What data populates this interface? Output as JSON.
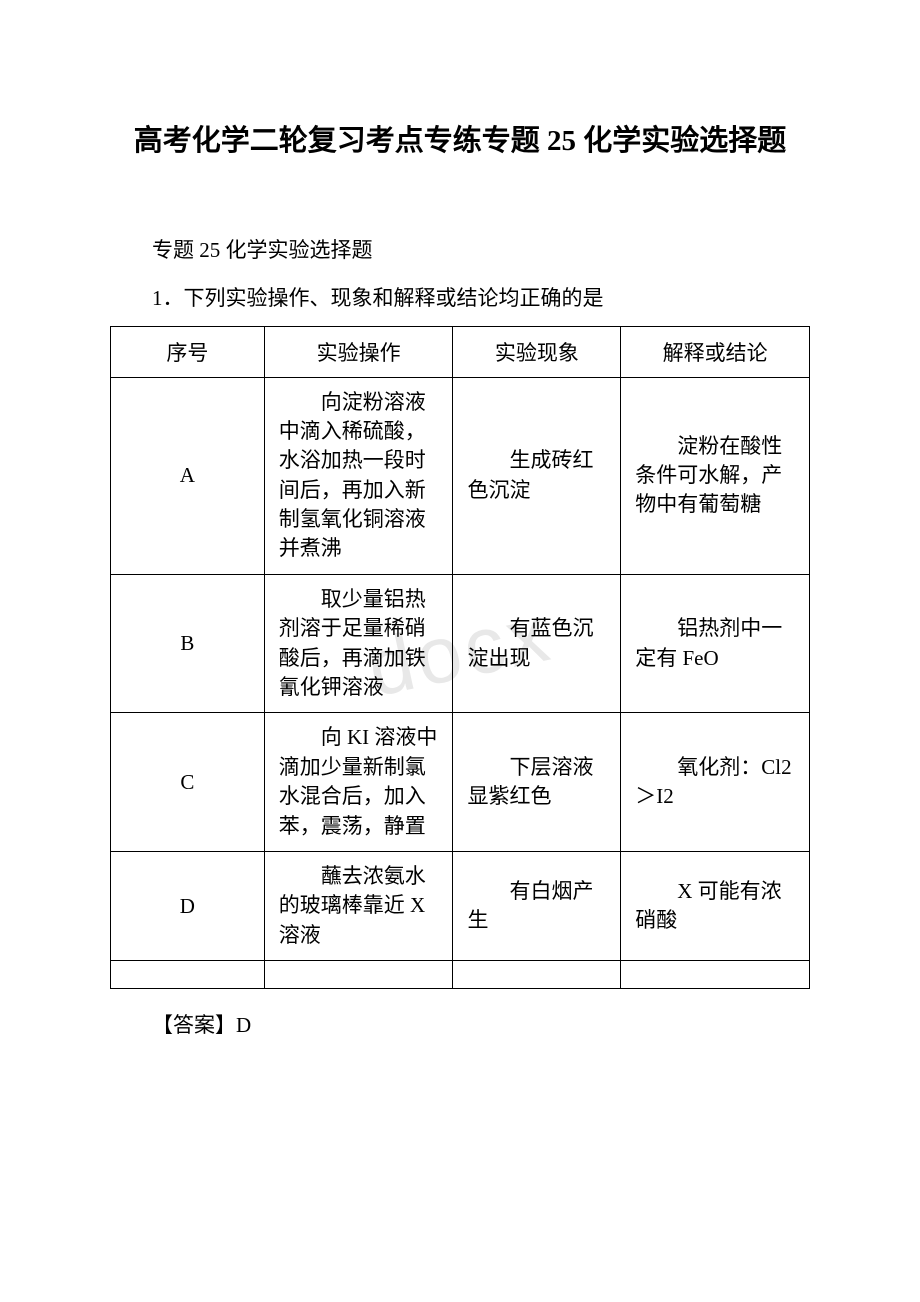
{
  "watermark": "docx",
  "title": "高考化学二轮复习考点专练专题 25 化学实验选择题",
  "subtitle": "专题 25 化学实验选择题",
  "question": "1．下列实验操作、现象和解释或结论均正确的是",
  "table": {
    "headers": {
      "seq": "序号",
      "operation": "实验操作",
      "phenomenon": "实验现象",
      "conclusion": "解释或结论"
    },
    "rows": [
      {
        "seq": "A",
        "operation": "向淀粉溶液中滴入稀硫酸，水浴加热一段时间后，再加入新制氢氧化铜溶液并煮沸",
        "phenomenon": "生成砖红色沉淀",
        "conclusion": "淀粉在酸性条件可水解，产物中有葡萄糖"
      },
      {
        "seq": "B",
        "operation": "取少量铝热剂溶于足量稀硝酸后，再滴加铁氰化钾溶液",
        "phenomenon": "有蓝色沉淀出现",
        "conclusion": "铝热剂中一定有 FeO"
      },
      {
        "seq": "C",
        "operation": "向 KI 溶液中滴加少量新制氯水混合后，加入苯，震荡，静置",
        "phenomenon": "下层溶液显紫红色",
        "conclusion": "氧化剂：Cl2＞I2"
      },
      {
        "seq": "D",
        "operation": "蘸去浓氨水的玻璃棒靠近 X 溶液",
        "phenomenon": "有白烟产生",
        "conclusion": "X 可能有浓硝酸"
      }
    ]
  },
  "answer": "【答案】D"
}
